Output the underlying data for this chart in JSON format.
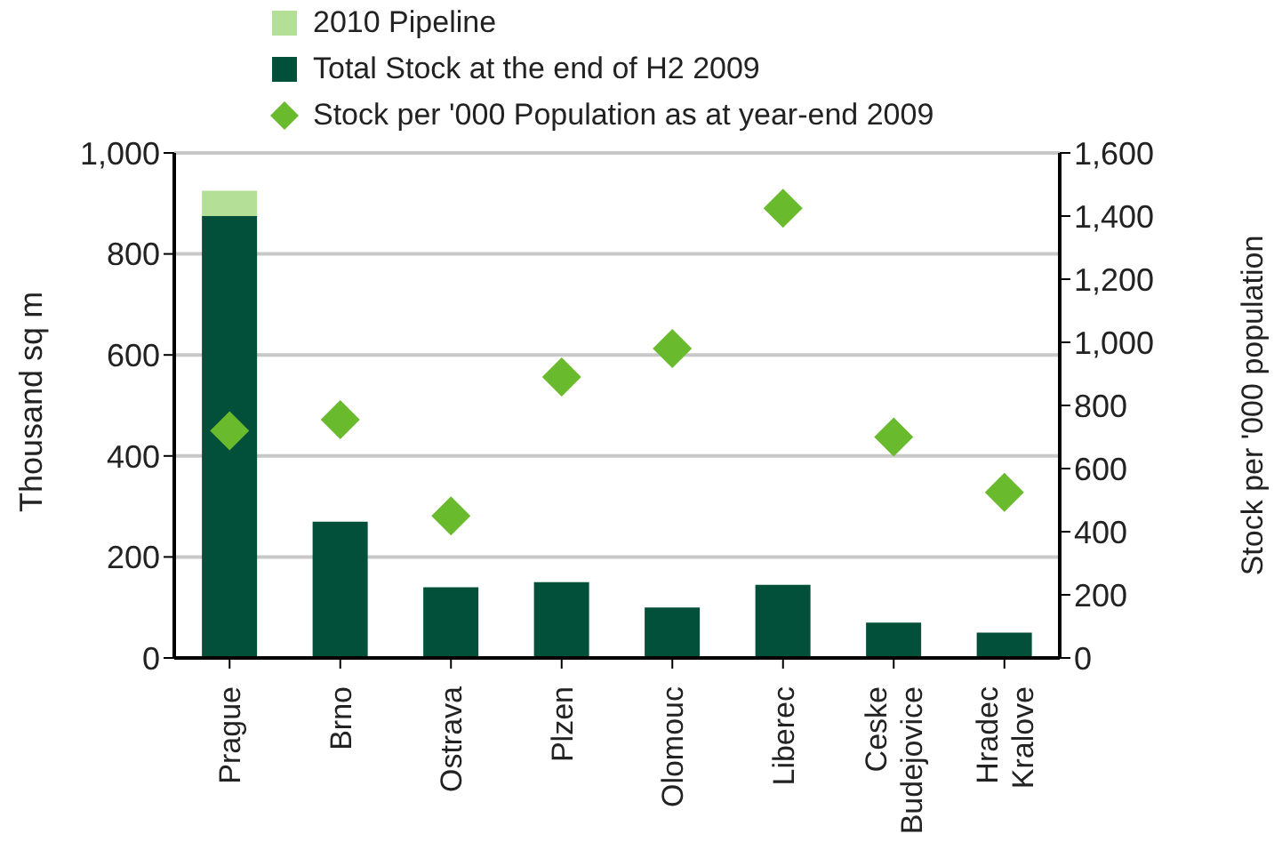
{
  "chart_data": {
    "type": "bar",
    "stacked": true,
    "categories": [
      "Prague",
      "Brno",
      "Ostrava",
      "Plzen",
      "Olomouc",
      "Liberec",
      "Ceske Budejovice",
      "Hradec Kralove"
    ],
    "series": [
      {
        "name": "Total Stock at the end of H2 2009",
        "color": "#02503a",
        "values": [
          875,
          270,
          140,
          150,
          100,
          145,
          70,
          50
        ]
      },
      {
        "name": "2010 Pipeline",
        "color": "#b3e096",
        "values": [
          50,
          null,
          null,
          null,
          null,
          null,
          null,
          null
        ]
      },
      {
        "name": "Stock per '000 Population as at year-end 2009",
        "type": "scatter",
        "axis": "y2",
        "color": "#6aba2e",
        "values": [
          720,
          755,
          450,
          890,
          980,
          1425,
          700,
          525
        ]
      }
    ],
    "ylabel": "Thousand sq m",
    "y2label": "Stock per '000 population",
    "ylim": [
      0,
      1000
    ],
    "yticks": [
      0,
      200,
      400,
      600,
      800,
      {
        "value": 1000,
        "label": "1,000"
      }
    ],
    "y2lim": [
      0,
      1600
    ],
    "y2ticks": [
      0,
      200,
      400,
      600,
      800,
      {
        "value": 1000,
        "label": "1,000"
      },
      {
        "value": 1200,
        "label": "1,200"
      },
      {
        "value": 1400,
        "label": "1,400"
      },
      {
        "value": 1600,
        "label": "1,600"
      }
    ],
    "grid": "y",
    "legend": "top left",
    "marker": "diamond"
  }
}
